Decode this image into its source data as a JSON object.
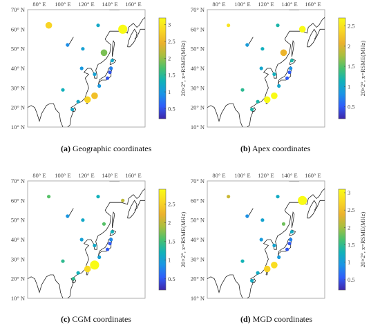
{
  "chart_data": [
    {
      "type": "scatter",
      "panel_label": "(a)",
      "caption": "Geographic coordinates",
      "colorbar_label": "20×2°, x=RSME(MHz)",
      "colorbar_ticks": [
        "0.5",
        "1",
        "1.5",
        "2",
        "2.5",
        "3"
      ],
      "clim": [
        0.2,
        3.2
      ],
      "xlim": [
        70,
        170
      ],
      "ylim": [
        10,
        70
      ],
      "xticks": [
        80,
        100,
        120,
        140,
        160
      ],
      "yticks": [
        10,
        20,
        30,
        40,
        50,
        60,
        70
      ],
      "xtick_labels": [
        "80° E",
        "100° E",
        "120° E",
        "140° E",
        "160° E"
      ],
      "ytick_labels": [
        "10° N",
        "20° N",
        "30° N",
        "40° N",
        "50° N",
        "60° N",
        "70° N"
      ],
      "points": [
        {
          "lon": 88,
          "lat": 62,
          "value": 2.8,
          "size": 2
        },
        {
          "lon": 151,
          "lat": 60,
          "value": 3.2,
          "size": 3
        },
        {
          "lon": 130,
          "lat": 62,
          "value": 1.2,
          "size": 1
        },
        {
          "lon": 104,
          "lat": 52,
          "value": 0.9,
          "size": 1
        },
        {
          "lon": 117,
          "lat": 50,
          "value": 1.1,
          "size": 1
        },
        {
          "lon": 135,
          "lat": 48,
          "value": 1.9,
          "size": 2
        },
        {
          "lon": 142,
          "lat": 44,
          "value": 1.2,
          "size": 1
        },
        {
          "lon": 141,
          "lat": 40,
          "value": 0.8,
          "size": 1
        },
        {
          "lon": 140,
          "lat": 38,
          "value": 0.5,
          "size": 1
        },
        {
          "lon": 116,
          "lat": 40,
          "value": 1.0,
          "size": 1
        },
        {
          "lon": 127,
          "lat": 37,
          "value": 1.1,
          "size": 1
        },
        {
          "lon": 138,
          "lat": 35,
          "value": 0.5,
          "size": 1
        },
        {
          "lon": 131,
          "lat": 31,
          "value": 1.0,
          "size": 1
        },
        {
          "lon": 100,
          "lat": 29,
          "value": 1.3,
          "size": 1
        },
        {
          "lon": 127,
          "lat": 26,
          "value": 2.6,
          "size": 2
        },
        {
          "lon": 121,
          "lat": 24,
          "value": 2.8,
          "size": 2
        },
        {
          "lon": 113,
          "lat": 23,
          "value": 1.2,
          "size": 1
        },
        {
          "lon": 108,
          "lat": 19,
          "value": 1.2,
          "size": 1
        }
      ]
    },
    {
      "type": "scatter",
      "panel_label": "(b)",
      "caption": "Apex coordinates",
      "colorbar_label": "20×2°, x=RSME(MHz)",
      "colorbar_ticks": [
        "0.5",
        "1",
        "1.5",
        "2",
        "2.5"
      ],
      "clim": [
        0.2,
        2.7
      ],
      "xlim": [
        70,
        170
      ],
      "ylim": [
        10,
        70
      ],
      "xticks": [
        80,
        100,
        120,
        140,
        160
      ],
      "yticks": [
        10,
        20,
        30,
        40,
        50,
        60,
        70
      ],
      "xtick_labels": [
        "80° E",
        "100° E",
        "120° E",
        "140° E",
        "160° E"
      ],
      "ytick_labels": [
        "10° N",
        "20° N",
        "30° N",
        "40° N",
        "50° N",
        "60° N",
        "70° N"
      ],
      "points": [
        {
          "lon": 88,
          "lat": 62,
          "value": 2.5,
          "size": 1
        },
        {
          "lon": 151,
          "lat": 60,
          "value": 2.7,
          "size": 2
        },
        {
          "lon": 130,
          "lat": 62,
          "value": 1.2,
          "size": 1
        },
        {
          "lon": 104,
          "lat": 52,
          "value": 0.9,
          "size": 1
        },
        {
          "lon": 117,
          "lat": 50,
          "value": 1.1,
          "size": 1
        },
        {
          "lon": 135,
          "lat": 48,
          "value": 2.1,
          "size": 2
        },
        {
          "lon": 142,
          "lat": 44,
          "value": 1.2,
          "size": 1
        },
        {
          "lon": 141,
          "lat": 40,
          "value": 0.8,
          "size": 1
        },
        {
          "lon": 140,
          "lat": 38,
          "value": 0.5,
          "size": 1
        },
        {
          "lon": 116,
          "lat": 40,
          "value": 1.0,
          "size": 1
        },
        {
          "lon": 127,
          "lat": 37,
          "value": 1.1,
          "size": 1
        },
        {
          "lon": 138,
          "lat": 35,
          "value": 0.5,
          "size": 1
        },
        {
          "lon": 131,
          "lat": 31,
          "value": 1.0,
          "size": 1
        },
        {
          "lon": 100,
          "lat": 29,
          "value": 1.3,
          "size": 1
        },
        {
          "lon": 127,
          "lat": 26,
          "value": 2.7,
          "size": 2
        },
        {
          "lon": 121,
          "lat": 24,
          "value": 2.7,
          "size": 2
        },
        {
          "lon": 113,
          "lat": 23,
          "value": 1.2,
          "size": 1
        },
        {
          "lon": 108,
          "lat": 19,
          "value": 1.2,
          "size": 1
        }
      ]
    },
    {
      "type": "scatter",
      "panel_label": "(c)",
      "caption": "CGM coordinates",
      "colorbar_label": "20×2°, x=RSME(MHz)",
      "colorbar_ticks": [
        "0.5",
        "1",
        "1.5",
        "2",
        "2.5"
      ],
      "clim": [
        0.2,
        2.9
      ],
      "xlim": [
        70,
        170
      ],
      "ylim": [
        10,
        70
      ],
      "xticks": [
        80,
        100,
        120,
        140,
        160
      ],
      "yticks": [
        10,
        20,
        30,
        40,
        50,
        60,
        70
      ],
      "xtick_labels": [
        "80° E",
        "100° E",
        "120° E",
        "140° E",
        "160° E"
      ],
      "ytick_labels": [
        "10° N",
        "20° N",
        "30° N",
        "40° N",
        "50° N",
        "60° N",
        "70° N"
      ],
      "points": [
        {
          "lon": 88,
          "lat": 62,
          "value": 1.6,
          "size": 1
        },
        {
          "lon": 151,
          "lat": 60,
          "value": 2.0,
          "size": 1
        },
        {
          "lon": 130,
          "lat": 62,
          "value": 1.2,
          "size": 1
        },
        {
          "lon": 104,
          "lat": 52,
          "value": 0.9,
          "size": 1
        },
        {
          "lon": 117,
          "lat": 50,
          "value": 1.1,
          "size": 1
        },
        {
          "lon": 135,
          "lat": 48,
          "value": 1.6,
          "size": 1
        },
        {
          "lon": 142,
          "lat": 44,
          "value": 1.2,
          "size": 1
        },
        {
          "lon": 141,
          "lat": 40,
          "value": 0.8,
          "size": 1
        },
        {
          "lon": 140,
          "lat": 38,
          "value": 0.5,
          "size": 1
        },
        {
          "lon": 116,
          "lat": 40,
          "value": 1.0,
          "size": 1
        },
        {
          "lon": 127,
          "lat": 37,
          "value": 1.1,
          "size": 1
        },
        {
          "lon": 138,
          "lat": 35,
          "value": 0.5,
          "size": 1
        },
        {
          "lon": 131,
          "lat": 31,
          "value": 1.0,
          "size": 1
        },
        {
          "lon": 100,
          "lat": 29,
          "value": 1.4,
          "size": 1
        },
        {
          "lon": 127,
          "lat": 27,
          "value": 2.9,
          "size": 3
        },
        {
          "lon": 121,
          "lat": 25,
          "value": 2.6,
          "size": 2
        },
        {
          "lon": 113,
          "lat": 23,
          "value": 1.2,
          "size": 1
        },
        {
          "lon": 109,
          "lat": 20,
          "value": 1.4,
          "size": 1
        }
      ]
    },
    {
      "type": "scatter",
      "panel_label": "(d)",
      "caption": "MGD coordinates",
      "colorbar_label": "20×2°, x=RSME(MHz)",
      "colorbar_ticks": [
        "0.5",
        "1",
        "1.5",
        "2",
        "2.5",
        "3"
      ],
      "clim": [
        0.2,
        3.1
      ],
      "xlim": [
        70,
        170
      ],
      "ylim": [
        10,
        70
      ],
      "xticks": [
        80,
        100,
        120,
        140,
        160
      ],
      "yticks": [
        10,
        20,
        30,
        40,
        50,
        60,
        70
      ],
      "xtick_labels": [
        "80° E",
        "100° E",
        "120° E",
        "140° E",
        "160° E"
      ],
      "ytick_labels": [
        "10° N",
        "20° N",
        "30° N",
        "40° N",
        "50° N",
        "60° N",
        "70° N"
      ],
      "points": [
        {
          "lon": 88,
          "lat": 62,
          "value": 2.2,
          "size": 1
        },
        {
          "lon": 151,
          "lat": 60,
          "value": 3.1,
          "size": 3
        },
        {
          "lon": 130,
          "lat": 62,
          "value": 1.2,
          "size": 1
        },
        {
          "lon": 104,
          "lat": 52,
          "value": 0.9,
          "size": 1
        },
        {
          "lon": 117,
          "lat": 50,
          "value": 1.1,
          "size": 1
        },
        {
          "lon": 135,
          "lat": 48,
          "value": 1.8,
          "size": 1
        },
        {
          "lon": 142,
          "lat": 44,
          "value": 1.2,
          "size": 1
        },
        {
          "lon": 141,
          "lat": 40,
          "value": 0.8,
          "size": 1
        },
        {
          "lon": 140,
          "lat": 38,
          "value": 0.5,
          "size": 1
        },
        {
          "lon": 116,
          "lat": 40,
          "value": 1.0,
          "size": 1
        },
        {
          "lon": 127,
          "lat": 37,
          "value": 1.1,
          "size": 1
        },
        {
          "lon": 138,
          "lat": 35,
          "value": 0.5,
          "size": 1
        },
        {
          "lon": 131,
          "lat": 31,
          "value": 1.0,
          "size": 1
        },
        {
          "lon": 100,
          "lat": 29,
          "value": 1.3,
          "size": 1
        },
        {
          "lon": 127,
          "lat": 27,
          "value": 2.8,
          "size": 2
        },
        {
          "lon": 121,
          "lat": 25,
          "value": 2.7,
          "size": 2
        },
        {
          "lon": 113,
          "lat": 23,
          "value": 1.2,
          "size": 1
        },
        {
          "lon": 108,
          "lat": 19,
          "value": 1.2,
          "size": 1
        }
      ]
    }
  ],
  "colormap": [
    "#3e26a8",
    "#2f5df9",
    "#1a95e5",
    "#10b2b8",
    "#48c16e",
    "#a7bf3f",
    "#ebb12d",
    "#f9d724",
    "#f9fb15"
  ]
}
